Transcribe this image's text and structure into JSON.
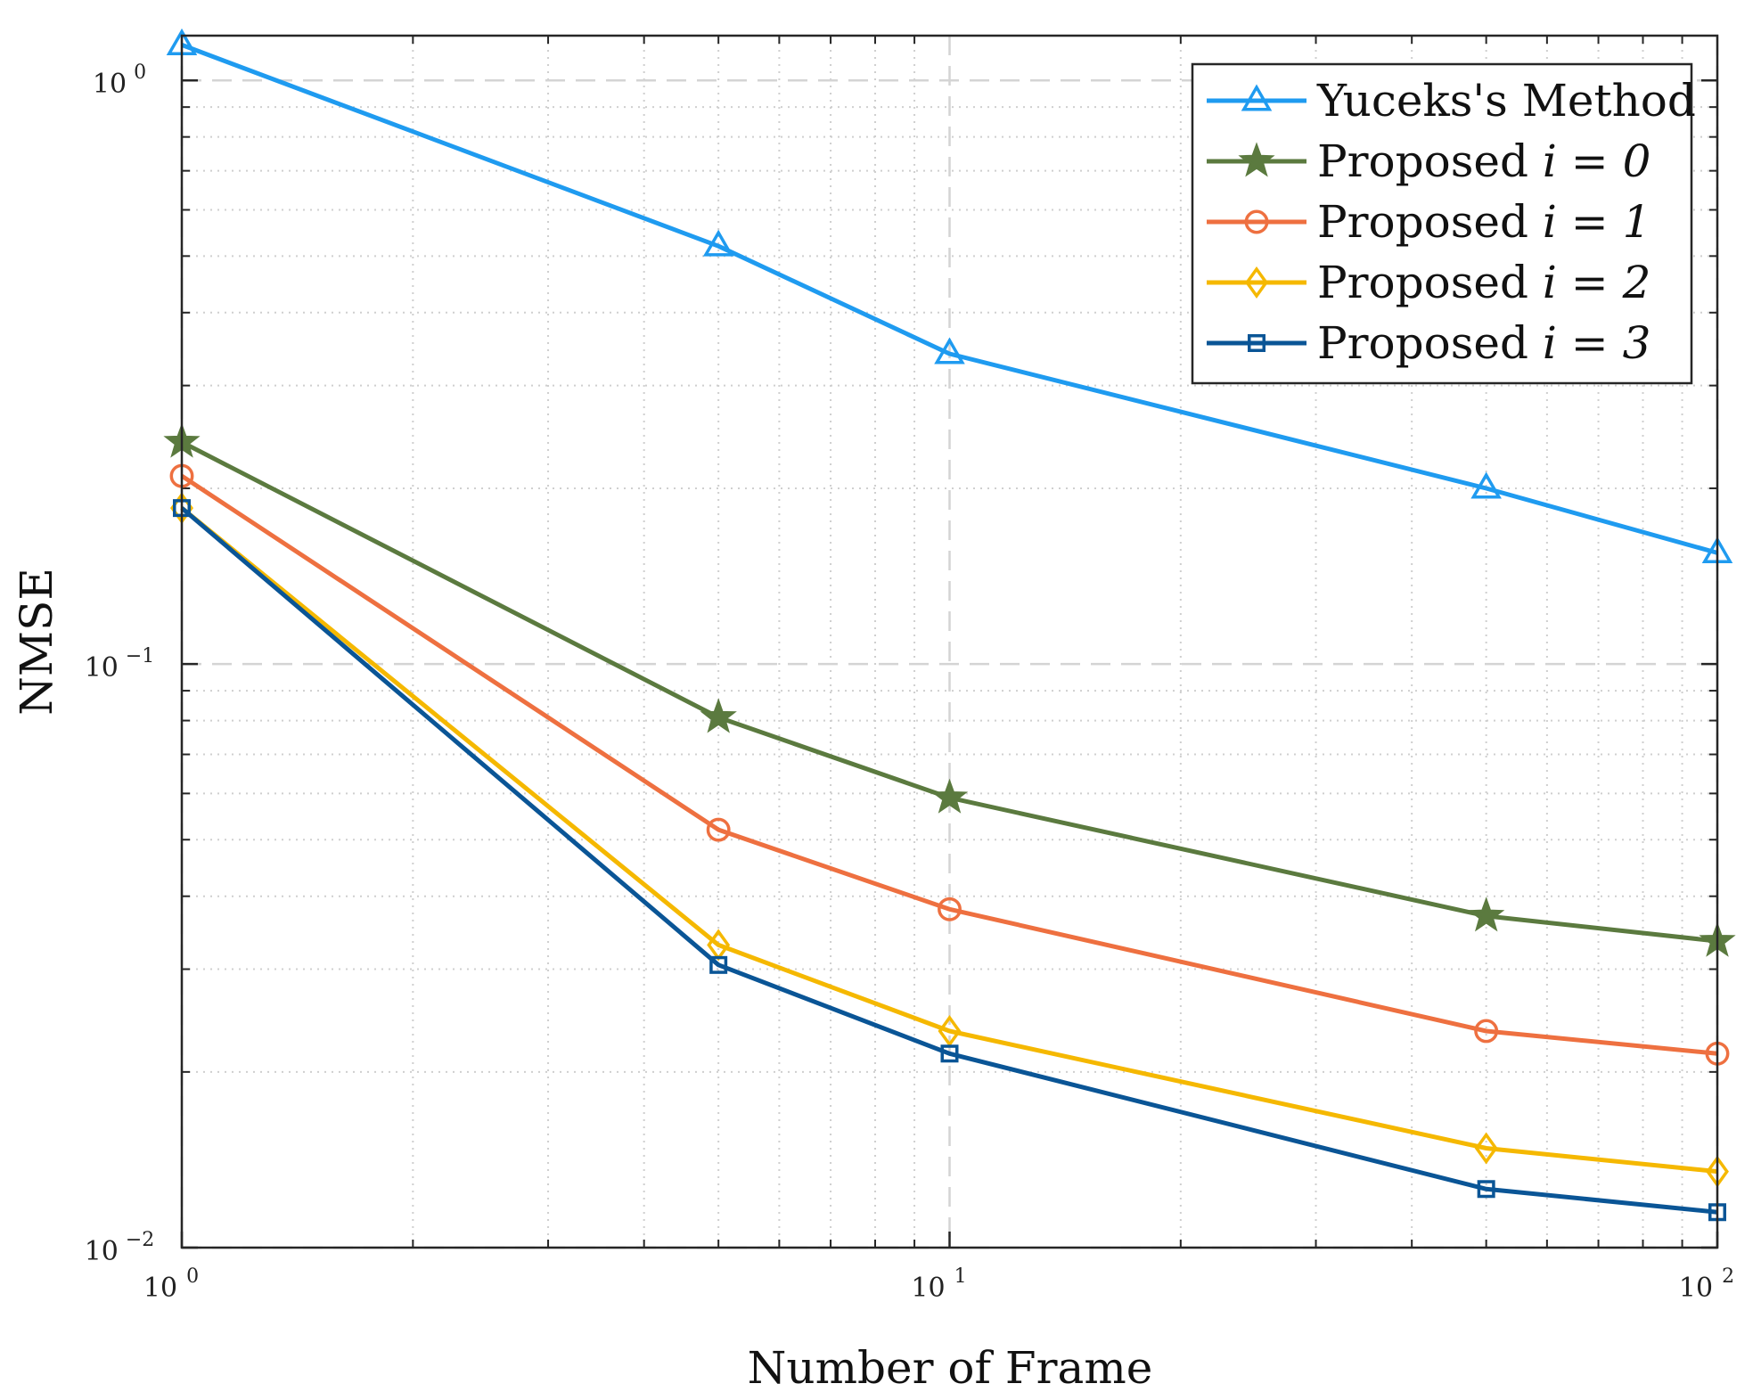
{
  "chart_data": {
    "type": "line",
    "title": "",
    "xlabel": "Number of Frame",
    "ylabel": "NMSE",
    "xscale": "log",
    "yscale": "log",
    "xlim": [
      1,
      100
    ],
    "ylim": [
      0.01,
      1.2
    ],
    "grid": true,
    "legend_position": "top-right",
    "x_ticks": [
      {
        "value": 1,
        "base": "10",
        "exp": "0"
      },
      {
        "value": 10,
        "base": "10",
        "exp": "1"
      },
      {
        "value": 100,
        "base": "10",
        "exp": "2"
      }
    ],
    "y_ticks": [
      {
        "value": 0.01,
        "base": "10",
        "exp": "−2"
      },
      {
        "value": 0.1,
        "base": "10",
        "exp": "−1"
      },
      {
        "value": 1,
        "base": "10",
        "exp": "0"
      }
    ],
    "x": [
      1,
      5,
      10,
      50,
      100
    ],
    "series": [
      {
        "name": "Yuceks's Method",
        "label_prefix": "Yuceks's Method",
        "label_math": "",
        "color": "#1f9bf0",
        "marker": "triangle",
        "values": [
          1.15,
          0.52,
          0.34,
          0.2,
          0.155
        ]
      },
      {
        "name": "Proposed i = 0",
        "label_prefix": "Proposed ",
        "label_math": "i = 0",
        "color": "#5b7a3f",
        "marker": "star",
        "values": [
          0.24,
          0.081,
          0.059,
          0.037,
          0.0335
        ]
      },
      {
        "name": "Proposed i = 1",
        "label_prefix": "Proposed ",
        "label_math": "i = 1",
        "color": "#ee7040",
        "marker": "circle",
        "values": [
          0.21,
          0.052,
          0.038,
          0.0235,
          0.0215
        ]
      },
      {
        "name": "Proposed i = 2",
        "label_prefix": "Proposed ",
        "label_math": "i = 2",
        "color": "#f5b800",
        "marker": "diamond",
        "values": [
          0.185,
          0.033,
          0.0235,
          0.0148,
          0.0135
        ]
      },
      {
        "name": "Proposed i = 3",
        "label_prefix": "Proposed ",
        "label_math": "i = 3",
        "color": "#0a5596",
        "marker": "square",
        "values": [
          0.185,
          0.0305,
          0.0215,
          0.0126,
          0.0115
        ]
      }
    ]
  }
}
